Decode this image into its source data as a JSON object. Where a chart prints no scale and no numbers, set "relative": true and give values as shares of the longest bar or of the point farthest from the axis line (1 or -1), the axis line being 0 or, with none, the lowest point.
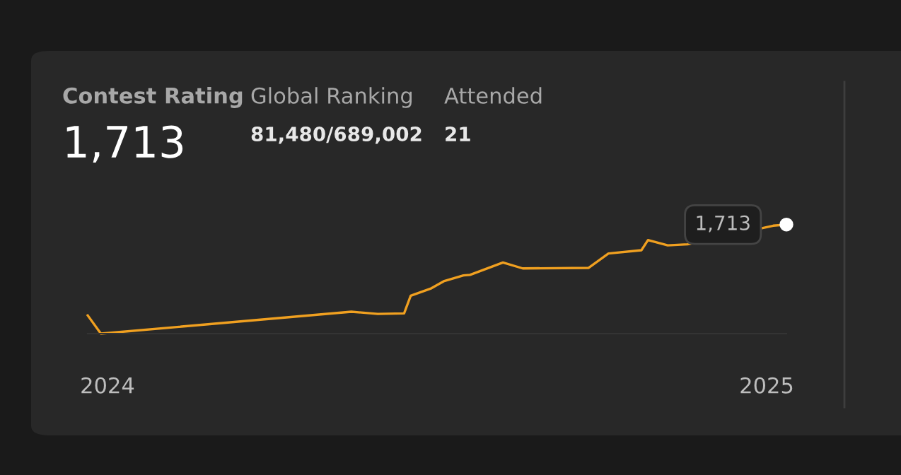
{
  "chart_data": {
    "type": "line",
    "relative": true,
    "x": [
      2023.97,
      2023.99,
      2024.37,
      2024.41,
      2024.45,
      2024.46,
      2024.49,
      2024.51,
      2024.54,
      2024.55,
      2024.6,
      2024.63,
      2024.73,
      2024.76,
      2024.81,
      2024.82,
      2024.85,
      2024.88,
      2025.01,
      2025.03
    ],
    "series": [
      {
        "color": "#f0a020",
        "values": [
          0.167,
          0,
          0.201,
          0.181,
          0.186,
          0.348,
          0.412,
          0.48,
          0.534,
          0.539,
          0.652,
          0.598,
          0.603,
          0.735,
          0.765,
          0.858,
          0.809,
          0.819,
          0.99,
          1
        ]
      }
    ],
    "xlim": [
      2023.97,
      2025.03
    ],
    "xticks": [
      2024,
      2025
    ],
    "grid": false,
    "legend": false,
    "marker": "none",
    "line_style": "solid",
    "annotations": [
      "Contest Rating",
      "1,713",
      "Global Ranking",
      "81,480/689,002",
      "Attended",
      "21",
      {
        "text": "1,713",
        "x": 2025.03,
        "y": 1
      }
    ]
  }
}
